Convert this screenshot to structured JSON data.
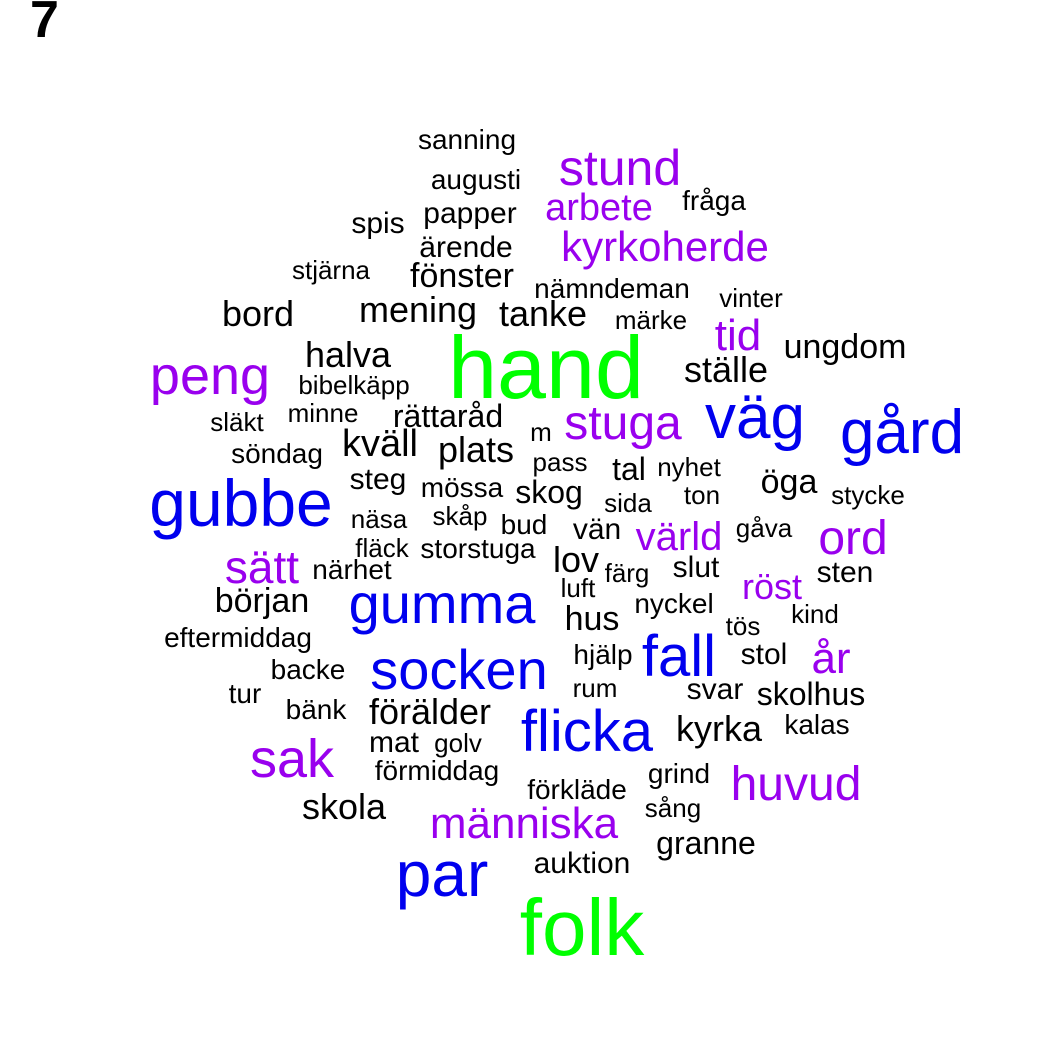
{
  "panel_label": "7",
  "colors": {
    "tier1": "#00ff00",
    "tier2": "#0000ee",
    "tier3": "#9900ee",
    "tier4": "#000000"
  },
  "words": [
    {
      "text": "sanning",
      "tier": 4
    },
    {
      "text": "augusti",
      "tier": 4
    },
    {
      "text": "stund",
      "tier": 3
    },
    {
      "text": "fråga",
      "tier": 4
    },
    {
      "text": "spis",
      "tier": 4
    },
    {
      "text": "papper",
      "tier": 4
    },
    {
      "text": "arbete",
      "tier": 3
    },
    {
      "text": "ärende",
      "tier": 4
    },
    {
      "text": "kyrkoherde",
      "tier": 3
    },
    {
      "text": "stjärna",
      "tier": 4
    },
    {
      "text": "fönster",
      "tier": 4
    },
    {
      "text": "nämndeman",
      "tier": 4
    },
    {
      "text": "vinter",
      "tier": 4
    },
    {
      "text": "bord",
      "tier": 4
    },
    {
      "text": "mening",
      "tier": 4
    },
    {
      "text": "tanke",
      "tier": 4
    },
    {
      "text": "märke",
      "tier": 4
    },
    {
      "text": "tid",
      "tier": 3
    },
    {
      "text": "hand",
      "tier": 1
    },
    {
      "text": "ungdom",
      "tier": 4
    },
    {
      "text": "peng",
      "tier": 3
    },
    {
      "text": "halva",
      "tier": 4
    },
    {
      "text": "ställe",
      "tier": 4
    },
    {
      "text": "bibelkäpp",
      "tier": 4
    },
    {
      "text": "väg",
      "tier": 2
    },
    {
      "text": "gård",
      "tier": 2
    },
    {
      "text": "släkt",
      "tier": 4
    },
    {
      "text": "minne",
      "tier": 4
    },
    {
      "text": "rättaråd",
      "tier": 4
    },
    {
      "text": "m",
      "tier": 4
    },
    {
      "text": "stuga",
      "tier": 3
    },
    {
      "text": "söndag",
      "tier": 4
    },
    {
      "text": "kväll",
      "tier": 4
    },
    {
      "text": "plats",
      "tier": 4
    },
    {
      "text": "pass",
      "tier": 4
    },
    {
      "text": "tal",
      "tier": 4
    },
    {
      "text": "nyhet",
      "tier": 4
    },
    {
      "text": "öga",
      "tier": 4
    },
    {
      "text": "gubbe",
      "tier": 2
    },
    {
      "text": "steg",
      "tier": 4
    },
    {
      "text": "mössa",
      "tier": 4
    },
    {
      "text": "skog",
      "tier": 4
    },
    {
      "text": "sida",
      "tier": 4
    },
    {
      "text": "ton",
      "tier": 4
    },
    {
      "text": "stycke",
      "tier": 4
    },
    {
      "text": "näsa",
      "tier": 4
    },
    {
      "text": "skåp",
      "tier": 4
    },
    {
      "text": "bud",
      "tier": 4
    },
    {
      "text": "vän",
      "tier": 4
    },
    {
      "text": "värld",
      "tier": 3
    },
    {
      "text": "gåva",
      "tier": 4
    },
    {
      "text": "ord",
      "tier": 3
    },
    {
      "text": "fläck",
      "tier": 4
    },
    {
      "text": "storstuga",
      "tier": 4
    },
    {
      "text": "lov",
      "tier": 4
    },
    {
      "text": "sätt",
      "tier": 3
    },
    {
      "text": "närhet",
      "tier": 4
    },
    {
      "text": "färg",
      "tier": 4
    },
    {
      "text": "slut",
      "tier": 4
    },
    {
      "text": "röst",
      "tier": 3
    },
    {
      "text": "sten",
      "tier": 4
    },
    {
      "text": "luft",
      "tier": 4
    },
    {
      "text": "början",
      "tier": 4
    },
    {
      "text": "gumma",
      "tier": 2
    },
    {
      "text": "nyckel",
      "tier": 4
    },
    {
      "text": "kind",
      "tier": 4
    },
    {
      "text": "hus",
      "tier": 4
    },
    {
      "text": "tös",
      "tier": 4
    },
    {
      "text": "eftermiddag",
      "tier": 4
    },
    {
      "text": "fall",
      "tier": 2
    },
    {
      "text": "hjälp",
      "tier": 4
    },
    {
      "text": "stol",
      "tier": 4
    },
    {
      "text": "backe",
      "tier": 4
    },
    {
      "text": "socken",
      "tier": 2
    },
    {
      "text": "år",
      "tier": 3
    },
    {
      "text": "rum",
      "tier": 4
    },
    {
      "text": "tur",
      "tier": 4
    },
    {
      "text": "svar",
      "tier": 4
    },
    {
      "text": "skolhus",
      "tier": 4
    },
    {
      "text": "bänk",
      "tier": 4
    },
    {
      "text": "förälder",
      "tier": 4
    },
    {
      "text": "flicka",
      "tier": 2
    },
    {
      "text": "kyrka",
      "tier": 4
    },
    {
      "text": "kalas",
      "tier": 4
    },
    {
      "text": "sak",
      "tier": 3
    },
    {
      "text": "mat",
      "tier": 4
    },
    {
      "text": "golv",
      "tier": 4
    },
    {
      "text": "förmiddag",
      "tier": 4
    },
    {
      "text": "grind",
      "tier": 4
    },
    {
      "text": "huvud",
      "tier": 3
    },
    {
      "text": "förkläde",
      "tier": 4
    },
    {
      "text": "sång",
      "tier": 4
    },
    {
      "text": "skola",
      "tier": 4
    },
    {
      "text": "människa",
      "tier": 3
    },
    {
      "text": "granne",
      "tier": 4
    },
    {
      "text": "par",
      "tier": 2
    },
    {
      "text": "auktion",
      "tier": 4
    },
    {
      "text": "folk",
      "tier": 1
    }
  ]
}
